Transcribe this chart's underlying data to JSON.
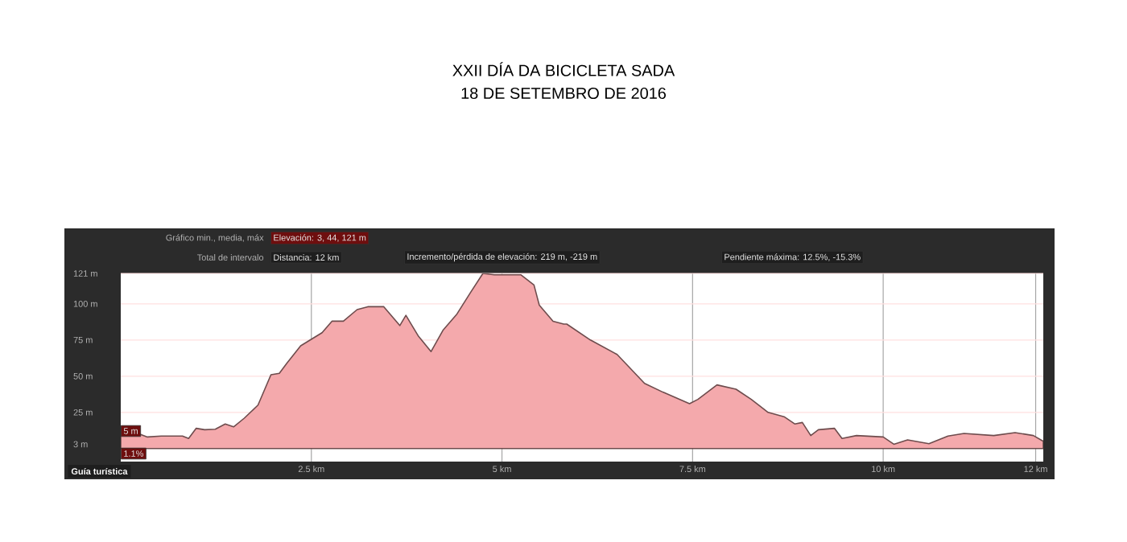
{
  "chart_data": {
    "type": "area",
    "title": "XXII DÍA DA BICICLETA SADA",
    "subtitle": "18 DE SETEMBRO DE 2016",
    "x": [
      0,
      0.35,
      0.53,
      0.81,
      0.89,
      0.99,
      1.1,
      1.24,
      1.37,
      1.48,
      1.62,
      1.8,
      1.97,
      2.08,
      2.18,
      2.36,
      2.64,
      2.77,
      2.92,
      3.1,
      3.24,
      3.45,
      3.66,
      3.74,
      3.9,
      4.07,
      4.23,
      4.41,
      4.59,
      4.75,
      4.9,
      5.07,
      5.25,
      5.42,
      5.49,
      5.67,
      5.81,
      5.85,
      6.16,
      6.51,
      6.87,
      7.11,
      7.46,
      7.57,
      7.82,
      8.07,
      8.27,
      8.49,
      8.7,
      8.84,
      8.94,
      9.05,
      9.15,
      9.36,
      9.46,
      9.65,
      10.0,
      10.14,
      10.32,
      10.6,
      10.85,
      11.06,
      11.45,
      11.73,
      11.97,
      12.1
    ],
    "series": [
      {
        "color": "#f4a9ac",
        "values": [
          15,
          8,
          8.6,
          8.6,
          7,
          14,
          13,
          13.4,
          17,
          15,
          21,
          30,
          51,
          52,
          59,
          71,
          80,
          88,
          88,
          96,
          98,
          98,
          85,
          92,
          78,
          67,
          82,
          93,
          108,
          121,
          120,
          120,
          120,
          113,
          99,
          88,
          86,
          86,
          75,
          65,
          45,
          39,
          31,
          34,
          44,
          41,
          34,
          25,
          22,
          17,
          18,
          9,
          13,
          14,
          7,
          9,
          8,
          3,
          6,
          3.4,
          8.6,
          10.4,
          9,
          11,
          9,
          5
        ]
      }
    ],
    "xlim": [
      0,
      12.1
    ],
    "ylim": [
      -9,
      121
    ],
    "xticks": [
      {
        "value": 2.5,
        "label": "2.5 km"
      },
      {
        "value": 5,
        "label": "5 km"
      },
      {
        "value": 7.5,
        "label": "7.5 km"
      },
      {
        "value": 10,
        "label": "10 km"
      },
      {
        "value": 12,
        "label": "12 km"
      }
    ],
    "yticks": [
      {
        "value": 3,
        "label": "3 m"
      },
      {
        "value": 25,
        "label": "25 m"
      },
      {
        "value": 50,
        "label": "50 m"
      },
      {
        "value": 75,
        "label": "75 m"
      },
      {
        "value": 100,
        "label": "100 m"
      },
      {
        "value": 121,
        "label": "121 m"
      }
    ],
    "grid": true,
    "annotations": [
      "Gráfico min., media, máx",
      "Elevación: 3, 44, 121 m",
      "Total de intervalo",
      "Distancia: 12 km",
      "Incremento/pérdida de elevación: 219 m, -219 m",
      "Pendiente máxima: 12.5%, -15.3%",
      "5 m",
      "1.1%",
      "Guía turística"
    ]
  }
}
